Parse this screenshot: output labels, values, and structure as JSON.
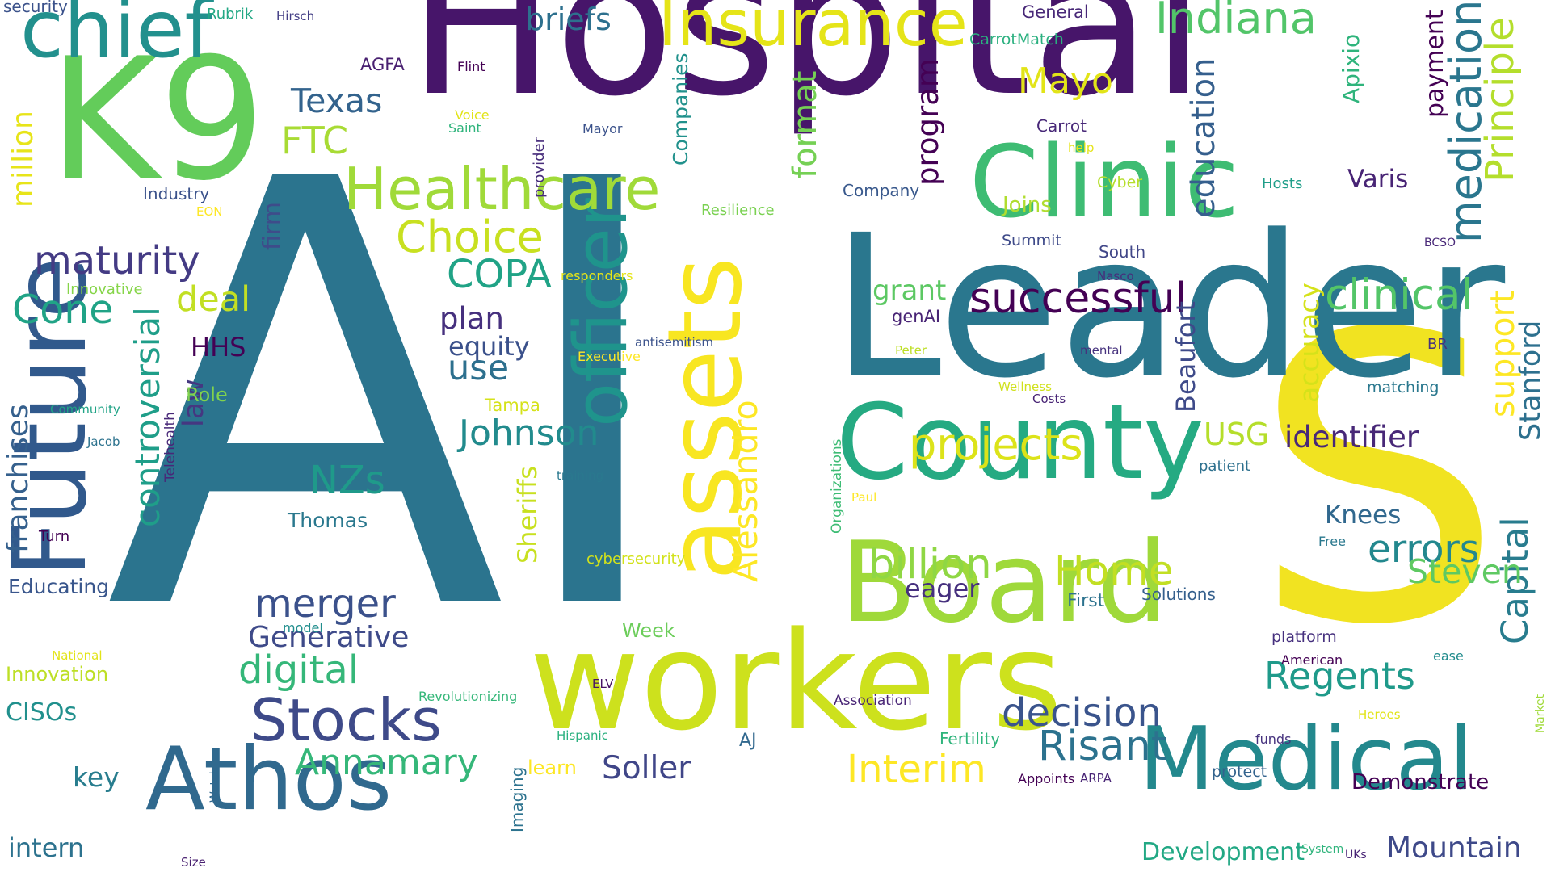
{
  "words": [
    {
      "text": "AI",
      "color": "#2b748e"
    },
    {
      "text": "Hospital",
      "color": "#47156a"
    },
    {
      "text": "S",
      "color": "#f1e321"
    },
    {
      "text": "Leader",
      "color": "#2a778e"
    },
    {
      "text": "K9",
      "color": "#63cc5a"
    },
    {
      "text": "workers",
      "color": "#cde11d"
    },
    {
      "text": "Future",
      "color": "#31598c"
    },
    {
      "text": "Board",
      "color": "#9fd93a"
    },
    {
      "text": "County",
      "color": "#25aa82"
    },
    {
      "text": "Clinic",
      "color": "#3ebc73"
    },
    {
      "text": "Medical",
      "color": "#23888d"
    },
    {
      "text": "officer",
      "color": "#1f948c"
    },
    {
      "text": "assets",
      "color": "#f8e621"
    },
    {
      "text": "Athos",
      "color": "#30698e"
    },
    {
      "text": "chief",
      "color": "#22908d"
    },
    {
      "text": "Insurance",
      "color": "#e5e418"
    },
    {
      "text": "Healthcare",
      "color": "#a0da39"
    },
    {
      "text": "Stocks",
      "color": "#3e4a89"
    },
    {
      "text": "Indiana",
      "color": "#52c569"
    },
    {
      "text": "medication",
      "color": "#2a768e"
    },
    {
      "text": "Principle",
      "color": "#b4de2c"
    },
    {
      "text": "education",
      "color": "#355f8d"
    },
    {
      "text": "projects",
      "color": "#dce319"
    },
    {
      "text": "clinical",
      "color": "#53c568"
    },
    {
      "text": "successful",
      "color": "#440154"
    },
    {
      "text": "billion",
      "color": "#8fd744"
    },
    {
      "text": "Regents",
      "color": "#1f9a8a"
    },
    {
      "text": "decision",
      "color": "#3a548c"
    },
    {
      "text": "errors",
      "color": "#23888e"
    },
    {
      "text": "Choice",
      "color": "#c8e020"
    },
    {
      "text": "Home",
      "color": "#c2df23"
    },
    {
      "text": "maturity",
      "color": "#443b84"
    },
    {
      "text": "merger",
      "color": "#3b518b"
    },
    {
      "text": "digital",
      "color": "#35b779"
    },
    {
      "text": "Capital",
      "color": "#287c8e"
    },
    {
      "text": "Johnson",
      "color": "#228b8d"
    },
    {
      "text": "Risant",
      "color": "#2c728e"
    },
    {
      "text": "Mountain",
      "color": "#3e4989"
    },
    {
      "text": "Development",
      "color": "#22a884"
    },
    {
      "text": "Interim",
      "color": "#fde725"
    },
    {
      "text": "Annamary",
      "color": "#35b779"
    },
    {
      "text": "Alessandro",
      "color": "#fde725"
    },
    {
      "text": "format",
      "color": "#75d054"
    },
    {
      "text": "program",
      "color": "#440154"
    },
    {
      "text": "controversial",
      "color": "#1f9e89"
    },
    {
      "text": "Generative",
      "color": "#3e4a89"
    },
    {
      "text": "COPA",
      "color": "#20a386"
    },
    {
      "text": "support",
      "color": "#fde725"
    },
    {
      "text": "Stanford",
      "color": "#2d708e"
    },
    {
      "text": "Steven",
      "color": "#5ec962"
    },
    {
      "text": "identifier",
      "color": "#482878"
    },
    {
      "text": "Beaufort",
      "color": "#3e4a89"
    },
    {
      "text": "accuracy",
      "color": "#d5e21a"
    },
    {
      "text": "payment",
      "color": "#440154"
    },
    {
      "text": "Apixio",
      "color": "#2fb47c"
    },
    {
      "text": "Mayo",
      "color": "#e2e418"
    },
    {
      "text": "Texas",
      "color": "#33638d"
    },
    {
      "text": "FTC",
      "color": "#a8db34"
    },
    {
      "text": "briefs",
      "color": "#2d708e"
    },
    {
      "text": "Varis",
      "color": "#482475"
    },
    {
      "text": "Soller",
      "color": "#404688"
    },
    {
      "text": "Knees",
      "color": "#31688e"
    },
    {
      "text": "Cone",
      "color": "#20a386"
    },
    {
      "text": "deal",
      "color": "#c2df23"
    },
    {
      "text": "plan",
      "color": "#46307e"
    },
    {
      "text": "use",
      "color": "#2d708e"
    },
    {
      "text": "equity",
      "color": "#3b518b"
    },
    {
      "text": "USG",
      "color": "#b5de2b"
    },
    {
      "text": "NZs",
      "color": "#1f9a8a"
    },
    {
      "text": "law",
      "color": "#453781"
    },
    {
      "text": "firm",
      "color": "#3e4c8a"
    },
    {
      "text": "Sheriffs",
      "color": "#c8e020"
    },
    {
      "text": "franchises",
      "color": "#35608d"
    },
    {
      "text": "million",
      "color": "#e7e419"
    },
    {
      "text": "grant",
      "color": "#5cc863"
    },
    {
      "text": "eager",
      "color": "#46307e"
    },
    {
      "text": "key",
      "color": "#287d8e"
    },
    {
      "text": "intern",
      "color": "#2c728e"
    },
    {
      "text": "CISOs",
      "color": "#21908d"
    },
    {
      "text": "HHS",
      "color": "#440154"
    },
    {
      "text": "Joins",
      "color": "#b0dd2f"
    },
    {
      "text": "Thomas",
      "color": "#2a788e"
    },
    {
      "text": "Educating",
      "color": "#39568c"
    },
    {
      "text": "Innovation",
      "color": "#bddf26"
    },
    {
      "text": "Role",
      "color": "#81d34d"
    },
    {
      "text": "Week",
      "color": "#6ccd5a"
    },
    {
      "text": "Tampa",
      "color": "#d5e21a"
    },
    {
      "text": "Summit",
      "color": "#3e4a89"
    },
    {
      "text": "Demonstrate",
      "color": "#440154"
    },
    {
      "text": "First",
      "color": "#2c728e"
    },
    {
      "text": "Solutions",
      "color": "#35608d"
    },
    {
      "text": "platform",
      "color": "#46307e"
    },
    {
      "text": "Imaging",
      "color": "#2c728e"
    },
    {
      "text": "Companies",
      "color": "#21918c"
    },
    {
      "text": "learn",
      "color": "#fde725"
    },
    {
      "text": "AJ",
      "color": "#31688e"
    },
    {
      "text": "genAI",
      "color": "#482475"
    },
    {
      "text": "Carrot",
      "color": "#482878"
    },
    {
      "text": "General",
      "color": "#482878"
    },
    {
      "text": "CarrotMatch",
      "color": "#2ab07f"
    },
    {
      "text": "Fertility",
      "color": "#2fb47c"
    },
    {
      "text": "South",
      "color": "#404688"
    },
    {
      "text": "matching",
      "color": "#2a788e"
    },
    {
      "text": "Cyber",
      "color": "#b5de2b"
    },
    {
      "text": "Hosts",
      "color": "#1f9e89"
    },
    {
      "text": "BR",
      "color": "#46327e"
    },
    {
      "text": "Company",
      "color": "#38588c"
    },
    {
      "text": "Resilience",
      "color": "#7ad151"
    },
    {
      "text": "Industry",
      "color": "#3b528b"
    },
    {
      "text": "AGFA",
      "color": "#481f70"
    },
    {
      "text": "security",
      "color": "#3b528b"
    },
    {
      "text": "Rubrik",
      "color": "#22a884"
    },
    {
      "text": "Hirsch",
      "color": "#433e85"
    },
    {
      "text": "Flint",
      "color": "#440154"
    },
    {
      "text": "Voice",
      "color": "#e2e418"
    },
    {
      "text": "Saint",
      "color": "#2fb47c"
    },
    {
      "text": "provider",
      "color": "#472d7b"
    },
    {
      "text": "Mayor",
      "color": "#3b528b"
    },
    {
      "text": "help",
      "color": "#e5e419"
    },
    {
      "text": "Telehealth",
      "color": "#482878"
    },
    {
      "text": "Innovative",
      "color": "#86d549"
    },
    {
      "text": "Community",
      "color": "#20a386"
    },
    {
      "text": "Jacob",
      "color": "#2c728e"
    },
    {
      "text": "Turn",
      "color": "#440154"
    },
    {
      "text": "model",
      "color": "#218e8d"
    },
    {
      "text": "National",
      "color": "#e2e418"
    },
    {
      "text": "Revolutionizing",
      "color": "#35b779"
    },
    {
      "text": "Hispanic",
      "color": "#2ab07f"
    },
    {
      "text": "ELV",
      "color": "#471365"
    },
    {
      "text": "Association",
      "color": "#482475"
    },
    {
      "text": "Watch",
      "color": "#31688e"
    },
    {
      "text": "Size",
      "color": "#481f70"
    },
    {
      "text": "cybersecurity",
      "color": "#d2e21b"
    },
    {
      "text": "training",
      "color": "#2a788e"
    },
    {
      "text": "Executive",
      "color": "#fde725"
    },
    {
      "text": "antisemitism",
      "color": "#3b528b"
    },
    {
      "text": "responders",
      "color": "#e5e419"
    },
    {
      "text": "Organizations",
      "color": "#3dbc74"
    },
    {
      "text": "Peter",
      "color": "#bddf26"
    },
    {
      "text": "mental",
      "color": "#46327e"
    },
    {
      "text": "Wellness",
      "color": "#d0e11c"
    },
    {
      "text": "Costs",
      "color": "#482475"
    },
    {
      "text": "Nasco",
      "color": "#472d7b"
    },
    {
      "text": "Paul",
      "color": "#fde725"
    },
    {
      "text": "EON",
      "color": "#fde725"
    },
    {
      "text": "patient",
      "color": "#2d708e"
    },
    {
      "text": "Free",
      "color": "#2a788e"
    },
    {
      "text": "BCSO",
      "color": "#482878"
    },
    {
      "text": "American",
      "color": "#440154"
    },
    {
      "text": "ease",
      "color": "#228c8d"
    },
    {
      "text": "Market",
      "color": "#a0da39"
    },
    {
      "text": "Heroes",
      "color": "#e2e418"
    },
    {
      "text": "funds",
      "color": "#46327e"
    },
    {
      "text": "protect",
      "color": "#33638d"
    },
    {
      "text": "Appoints",
      "color": "#440154"
    },
    {
      "text": "ARPA",
      "color": "#482475"
    },
    {
      "text": "System",
      "color": "#2fb47c"
    },
    {
      "text": "UKs",
      "color": "#482475"
    }
  ]
}
